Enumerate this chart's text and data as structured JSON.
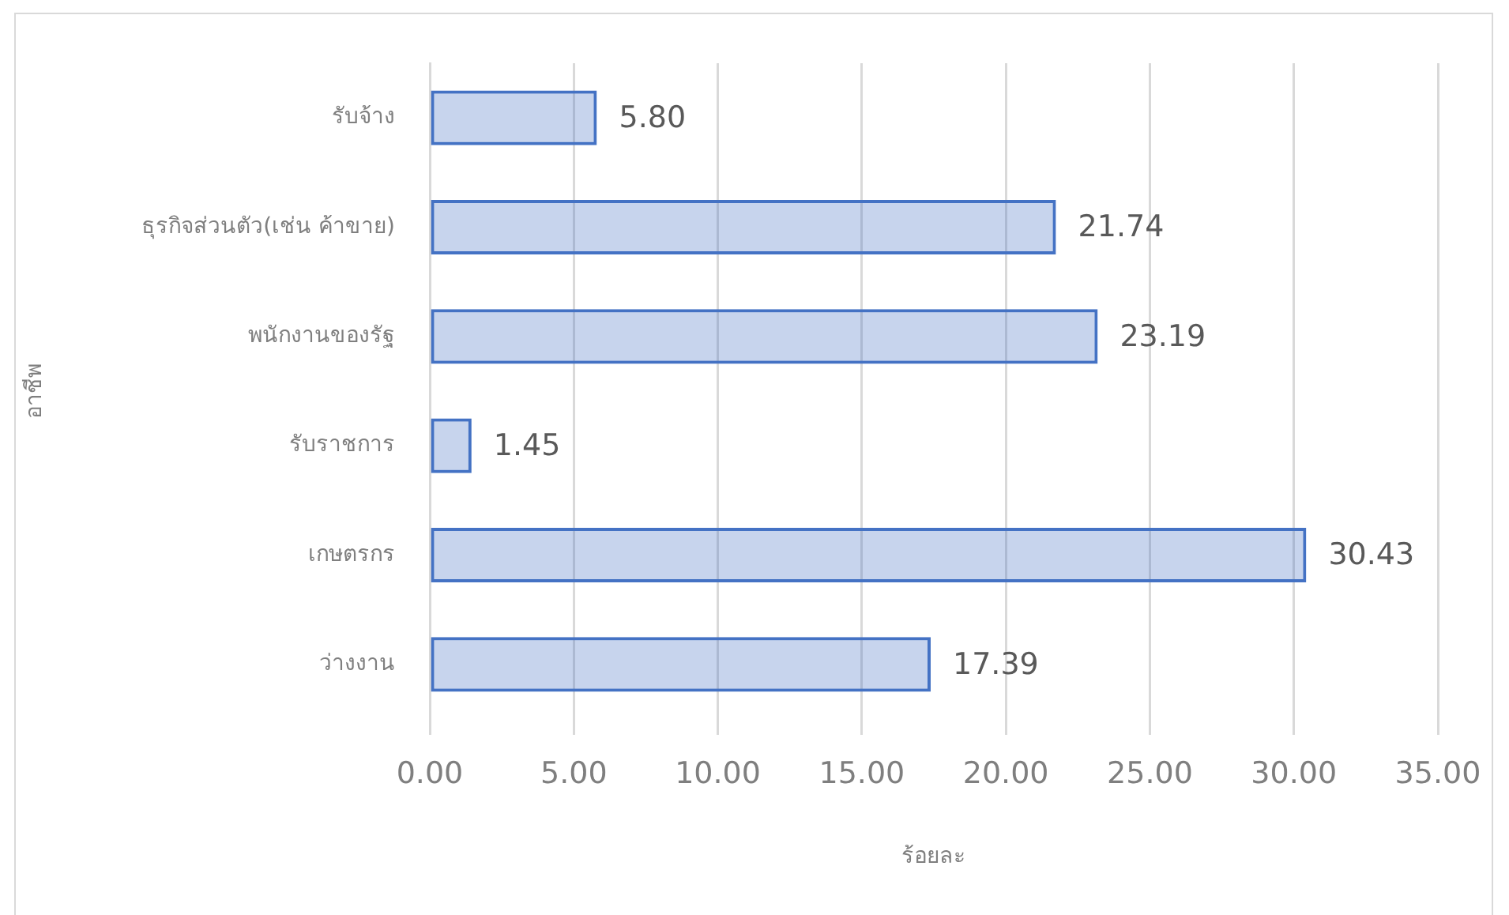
{
  "chart_data": {
    "type": "bar",
    "orientation": "horizontal",
    "ylabel": "อาชีพ",
    "xlabel": "ร้อยละ",
    "categories": [
      "รับจ้าง",
      "ธุรกิจส่วนตัว(เช่น ค้าขาย)",
      "พนักงานของรัฐ",
      "รับราชการ",
      "เกษตรกร",
      "ว่างงาน"
    ],
    "series": [
      {
        "color": "#4472c4",
        "values": [
          5.8,
          21.74,
          23.19,
          1.45,
          30.43,
          17.39
        ],
        "value_labels": [
          "5.80",
          "21.74",
          "23.19",
          "1.45",
          "30.43",
          "17.39"
        ]
      }
    ],
    "xlim": [
      0,
      35
    ],
    "xticks": [
      {
        "value": 0,
        "label": "0.00"
      },
      {
        "value": 5,
        "label": "5.00"
      },
      {
        "value": 10,
        "label": "10.00"
      },
      {
        "value": 15,
        "label": "15.00"
      },
      {
        "value": 20,
        "label": "20.00"
      },
      {
        "value": 25,
        "label": "25.00"
      },
      {
        "value": 30,
        "label": "30.00"
      },
      {
        "value": 35,
        "label": "35.00"
      }
    ],
    "grid": "x",
    "legend": false
  }
}
